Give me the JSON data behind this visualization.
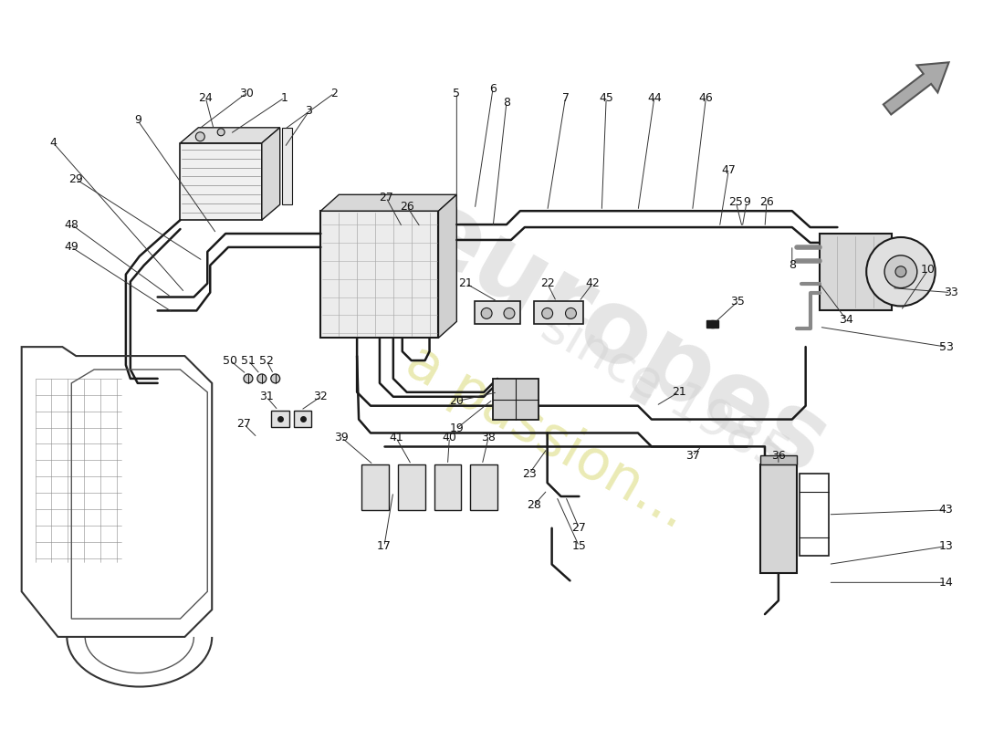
{
  "bg": "#ffffff",
  "lc": "#1a1a1a",
  "watermark1": "europes",
  "watermark2": "a passion...",
  "watermark3": "since 1985"
}
